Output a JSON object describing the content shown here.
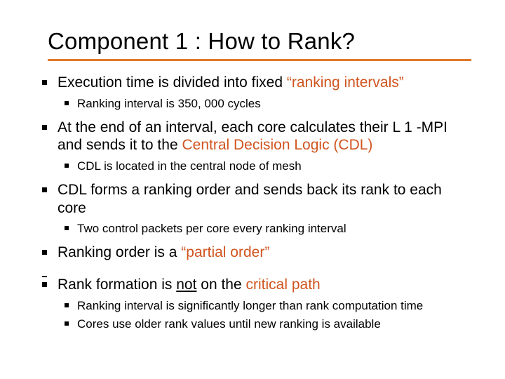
{
  "colors": {
    "rule": "#e07a2c",
    "accent": "#d0541f",
    "text": "#000000",
    "bg": "#ffffff"
  },
  "title": "Component 1 : How to Rank?",
  "items": [
    {
      "runs": [
        {
          "t": "Execution time is divided into fixed "
        },
        {
          "t": "“ranking intervals”",
          "accent": true
        }
      ],
      "sub": [
        {
          "runs": [
            {
              "t": "Ranking interval is 350, 000 cycles"
            }
          ]
        }
      ]
    },
    {
      "runs": [
        {
          "t": "At the end of an interval, each core calculates their L 1 -MPI and  sends it to the "
        },
        {
          "t": "Central Decision Logic (CDL)",
          "accent": true
        }
      ],
      "sub": [
        {
          "runs": [
            {
              "t": "CDL is located in the central node of mesh"
            }
          ]
        }
      ]
    },
    {
      "runs": [
        {
          "t": "CDL forms a ranking order and sends back its rank to each core"
        }
      ],
      "sub": [
        {
          "runs": [
            {
              "t": "Two control packets per core every ranking interval"
            }
          ]
        }
      ]
    },
    {
      "runs": [
        {
          "t": "Ranking order is a "
        },
        {
          "t": "“partial order”",
          "accent": true
        }
      ],
      "gapAfter": true
    },
    {
      "runs": [
        {
          "t": "Rank formation is "
        },
        {
          "t": "not",
          "underline": true
        },
        {
          "t": " on the "
        },
        {
          "t": "critical path",
          "accent": true
        }
      ],
      "sub": [
        {
          "runs": [
            {
              "t": "Ranking interval is significantly longer than rank computation time"
            }
          ]
        },
        {
          "runs": [
            {
              "t": "Cores use older rank values until new ranking is available"
            }
          ]
        }
      ]
    }
  ]
}
